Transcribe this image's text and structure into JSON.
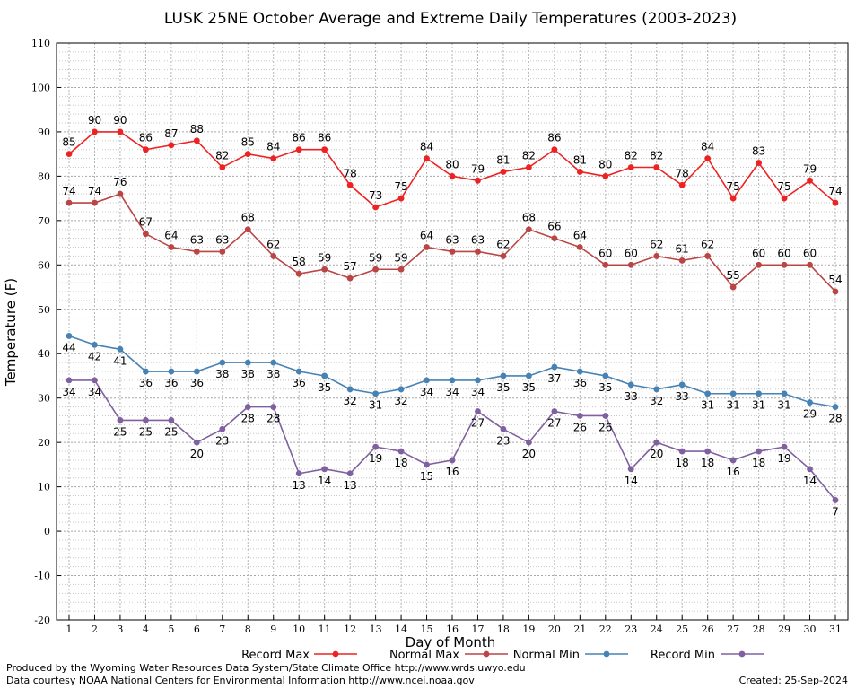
{
  "chart_data": {
    "type": "line",
    "title": "LUSK 25NE October Average and Extreme Daily Temperatures (2003-2023)",
    "xlabel": "Day of Month",
    "ylabel": "Temperature (F)",
    "ylim": [
      -20,
      110
    ],
    "yticks": [
      "-20",
      "-10",
      "0",
      "10",
      "20",
      "30",
      "40",
      "50",
      "60",
      "70",
      "80",
      "90",
      "100",
      "110"
    ],
    "x": [
      "1",
      "2",
      "3",
      "4",
      "5",
      "6",
      "7",
      "8",
      "9",
      "10",
      "11",
      "12",
      "13",
      "14",
      "15",
      "16",
      "17",
      "18",
      "19",
      "20",
      "21",
      "22",
      "23",
      "24",
      "25",
      "26",
      "27",
      "28",
      "29",
      "30",
      "31"
    ],
    "grid": true,
    "legend_position": "bottom",
    "series": [
      {
        "name": "Record Max",
        "color": "#ee2222",
        "label_side": "above",
        "values": [
          85,
          90,
          90,
          86,
          87,
          88,
          82,
          85,
          84,
          86,
          86,
          78,
          73,
          75,
          84,
          80,
          79,
          81,
          82,
          86,
          81,
          80,
          82,
          82,
          78,
          84,
          75,
          83,
          75,
          79,
          74
        ]
      },
      {
        "name": "Normal Max",
        "color": "#bb4444",
        "label_side": "above",
        "values": [
          74,
          74,
          76,
          67,
          64,
          63,
          63,
          68,
          62,
          58,
          59,
          57,
          59,
          59,
          64,
          63,
          63,
          62,
          68,
          66,
          64,
          60,
          60,
          62,
          61,
          62,
          55,
          60,
          60,
          60,
          54
        ]
      },
      {
        "name": "Normal Min",
        "color": "#4682b4",
        "label_side": "below",
        "values": [
          44,
          42,
          41,
          36,
          36,
          36,
          38,
          38,
          38,
          36,
          35,
          32,
          31,
          32,
          34,
          34,
          34,
          35,
          35,
          37,
          36,
          35,
          33,
          32,
          33,
          31,
          31,
          31,
          31,
          29,
          28
        ]
      },
      {
        "name": "Record Min",
        "color": "#8060a0",
        "label_side": "below",
        "values": [
          34,
          34,
          25,
          25,
          25,
          20,
          23,
          28,
          28,
          13,
          14,
          13,
          19,
          18,
          15,
          16,
          27,
          23,
          20,
          27,
          26,
          26,
          14,
          20,
          18,
          18,
          16,
          18,
          19,
          14,
          7
        ]
      }
    ]
  },
  "footer": {
    "credit_line1": "Produced by the Wyoming Water Resources Data System/State Climate Office http://www.wrds.uwyo.edu",
    "credit_line2": "Data courtesy NOAA National Centers for Environmental Information http://www.ncei.noaa.gov",
    "created": "Created:  25-Sep-2024"
  }
}
